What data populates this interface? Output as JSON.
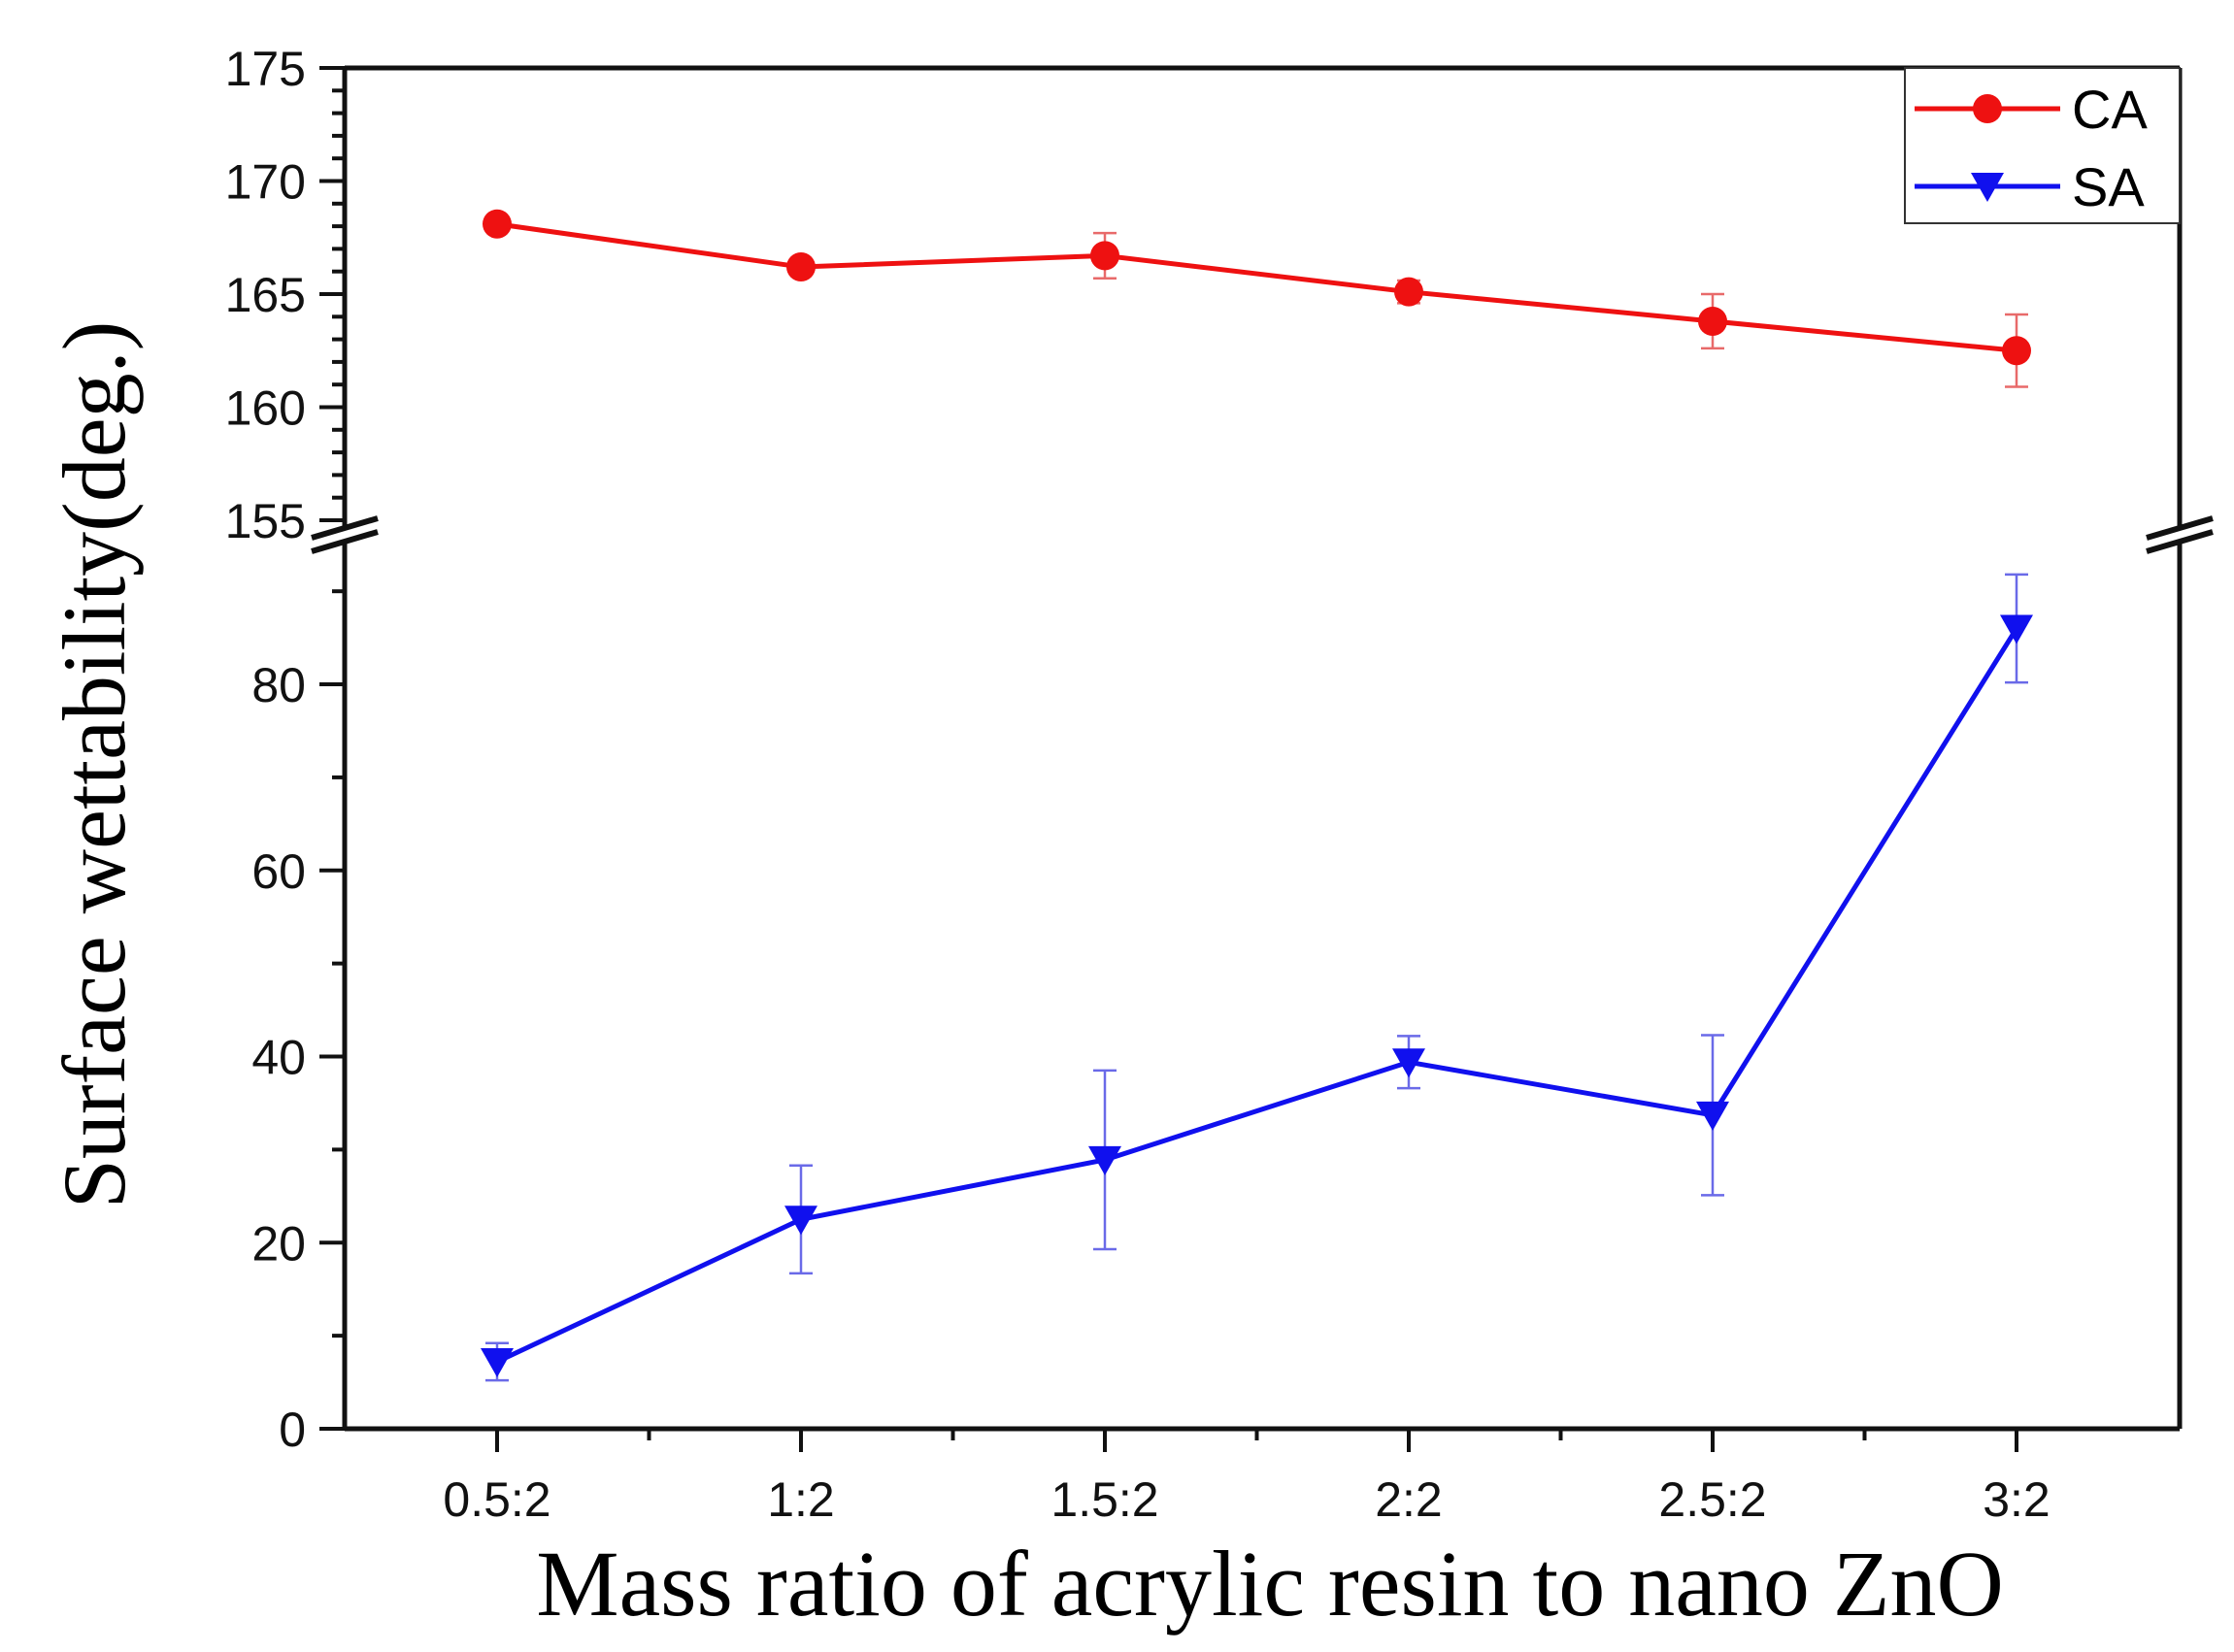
{
  "chart_data": {
    "type": "line",
    "title": "",
    "xlabel": "Mass ratio of acrylic resin to nano ZnO",
    "ylabel": "Surface wettability(deg.)",
    "categories": [
      "0.5:2",
      "1:2",
      "1.5:2",
      "2:2",
      "2.5:2",
      "3:2"
    ],
    "y_axis_broken": true,
    "y_upper_range": [
      155,
      175
    ],
    "y_upper_ticks": [
      "155",
      "160",
      "165",
      "170",
      "175"
    ],
    "y_lower_range": [
      0,
      92
    ],
    "y_lower_ticks": [
      "0",
      "20",
      "40",
      "60",
      "80"
    ],
    "grid": false,
    "legend_position": "top-right",
    "series": [
      {
        "name": "CA",
        "color": "#ee1111",
        "marker": "circle",
        "panel": "upper",
        "values": [
          168.1,
          166.2,
          166.7,
          165.1,
          163.8,
          162.5
        ],
        "errors": [
          0.3,
          0.3,
          1.0,
          0.5,
          1.2,
          1.6
        ]
      },
      {
        "name": "SA",
        "color": "#1010ee",
        "marker": "triangle-down",
        "panel": "lower",
        "values": [
          7.2,
          22.5,
          28.9,
          39.4,
          33.7,
          86.0
        ],
        "errors": [
          2.0,
          5.8,
          9.6,
          2.8,
          8.6,
          5.8
        ]
      }
    ]
  }
}
